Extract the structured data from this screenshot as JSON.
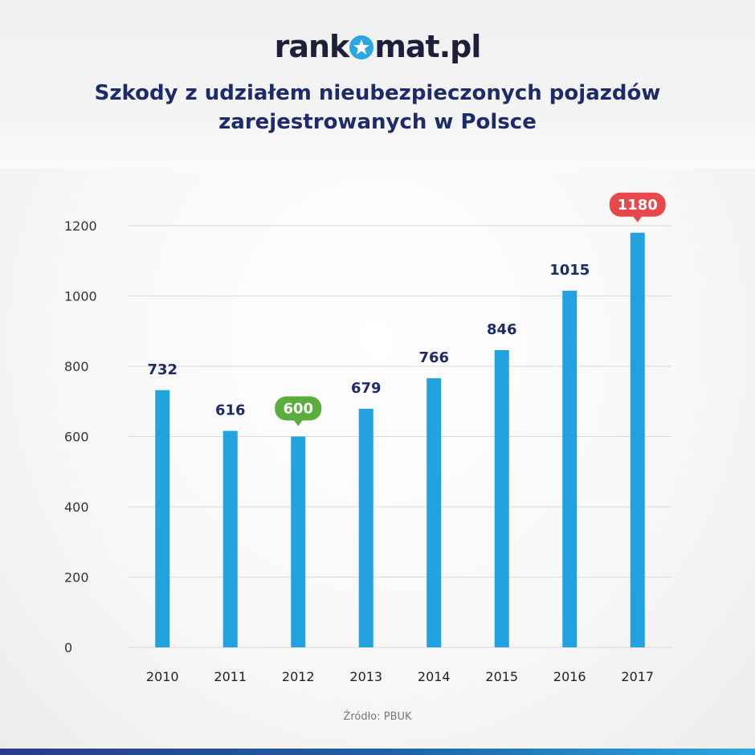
{
  "logo": {
    "part1": "rank",
    "part2": "mat.pl"
  },
  "title_line1": "Szkody z udziałem nieubezpieczonych pojazdów",
  "title_line2": "zarejestrowanych w Polsce",
  "source": "Źródło: PBUK",
  "colors": {
    "bar": "#22a3df",
    "label": "#1d2b6b",
    "highlight_min": "#5cae3c",
    "highlight_max": "#e8484c",
    "grid": "#d9d9d9"
  },
  "chart_data": {
    "type": "bar",
    "title": "Szkody z udziałem nieubezpieczonych pojazdów zarejestrowanych w Polsce",
    "categories": [
      "2010",
      "2011",
      "2012",
      "2013",
      "2014",
      "2015",
      "2016",
      "2017"
    ],
    "values": [
      732,
      616,
      600,
      679,
      766,
      846,
      1015,
      1180
    ],
    "data_labels": [
      "732",
      "616",
      "600",
      "679",
      "766",
      "846",
      "1015",
      "1180"
    ],
    "highlight": {
      "2012": "min",
      "2017": "max"
    },
    "yticks": [
      0,
      200,
      400,
      600,
      800,
      1000,
      1200
    ],
    "ylim": [
      0,
      1200
    ],
    "grid": true,
    "legend": "none"
  }
}
